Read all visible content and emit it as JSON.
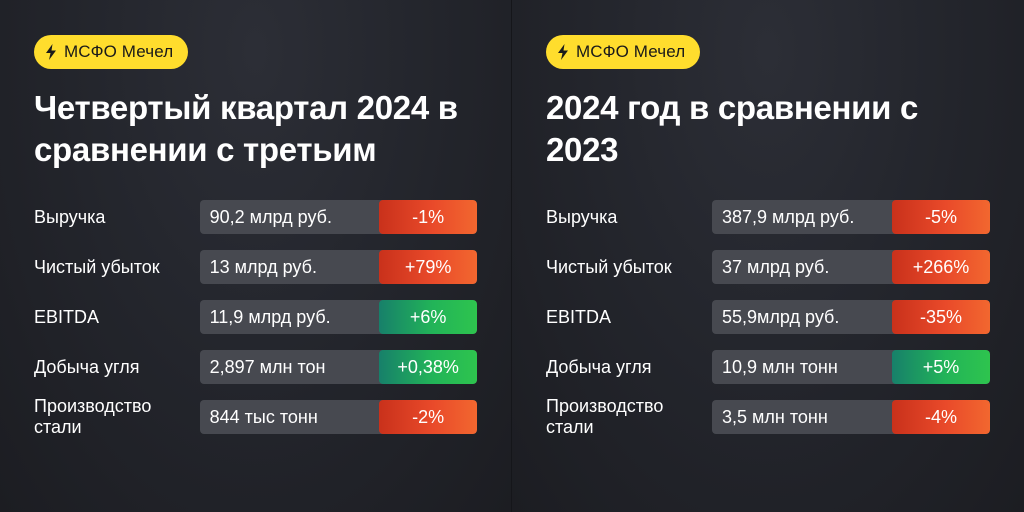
{
  "colors": {
    "badge": "#ffdd2d",
    "negative": "#e94a2a",
    "positive": "#22b458",
    "value_bg": "#474950",
    "background": "#24262d"
  },
  "badge_icon": "lightning-bolt-icon",
  "left": {
    "badge": "МСФО Мечел",
    "title_line1": "Четвертый квартал 2024 в",
    "title_line2": "сравнении с третьим",
    "rows": [
      {
        "label": "Выручка",
        "value": "90,2 млрд руб.",
        "change": "-1%",
        "trend": "negative"
      },
      {
        "label": "Чистый убыток",
        "value": "13 млрд руб.",
        "change": "+79%",
        "trend": "negative"
      },
      {
        "label": "EBITDA",
        "value": "11,9 млрд руб.",
        "change": "+6%",
        "trend": "positive"
      },
      {
        "label": "Добыча угля",
        "value": "2,897 млн тон",
        "change": "+0,38%",
        "trend": "positive"
      },
      {
        "label_line1": "Производство",
        "label_line2": "стали",
        "value": "844 тыс тонн",
        "change": "-2%",
        "trend": "negative"
      }
    ]
  },
  "right": {
    "badge": "МСФО Мечел",
    "title_line1": "2024 год в сравнении с",
    "title_line2": "2023",
    "rows": [
      {
        "label": "Выручка",
        "value": "387,9 млрд руб.",
        "change": "-5%",
        "trend": "negative"
      },
      {
        "label": "Чистый убыток",
        "value": "37 млрд руб.",
        "change": "+266%",
        "trend": "negative"
      },
      {
        "label": "EBITDA",
        "value": "55,9млрд руб.",
        "change": "-35%",
        "trend": "negative"
      },
      {
        "label": "Добыча угля",
        "value": "10,9 млн тонн",
        "change": "+5%",
        "trend": "positive"
      },
      {
        "label_line1": "Производство",
        "label_line2": "стали",
        "value": "3,5 млн тонн",
        "change": "-4%",
        "trend": "negative"
      }
    ]
  }
}
